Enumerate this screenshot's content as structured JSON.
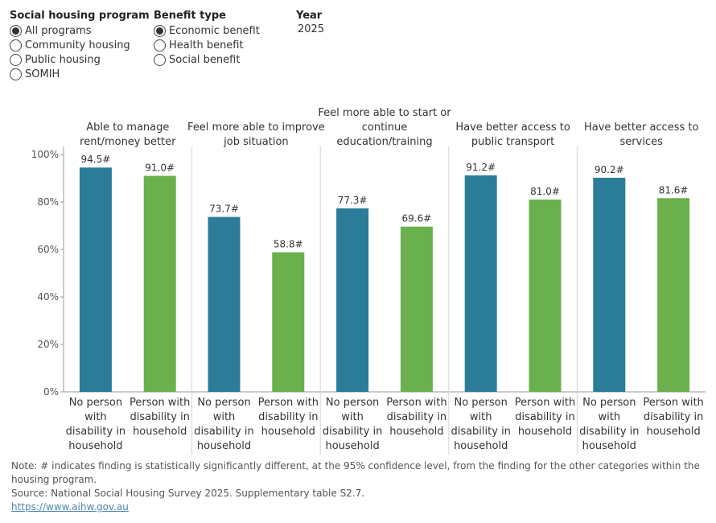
{
  "filters": {
    "program": {
      "title": "Social housing program",
      "options": [
        "All programs",
        "Community housing",
        "Public housing",
        "SOMIH"
      ],
      "selected": 0
    },
    "benefit": {
      "title": "Benefit type",
      "options": [
        "Economic benefit",
        "Health benefit",
        "Social benefit"
      ],
      "selected": 0
    },
    "year": {
      "title": "Year",
      "value": "2025"
    }
  },
  "colors": {
    "no_disability": "#2b7c99",
    "with_disability": "#6ab04c"
  },
  "chart_data": {
    "type": "bar",
    "ylim": [
      0,
      100
    ],
    "yticks": [
      "0%",
      "20%",
      "40%",
      "60%",
      "80%",
      "100%"
    ],
    "grid": false,
    "categories": [
      "No person with disability in household",
      "Person with disability in household"
    ],
    "panels": [
      {
        "title": [
          "Able to manage",
          "rent/money better"
        ],
        "values": [
          94.5,
          91.0
        ],
        "labels": [
          "94.5#",
          "91.0#"
        ]
      },
      {
        "title": [
          "Feel more able to improve",
          "job situation"
        ],
        "values": [
          73.7,
          58.8
        ],
        "labels": [
          "73.7#",
          "58.8#"
        ]
      },
      {
        "title": [
          "Feel more able to start or",
          "continue",
          "education/training"
        ],
        "values": [
          77.3,
          69.6
        ],
        "labels": [
          "77.3#",
          "69.6#"
        ]
      },
      {
        "title": [
          "Have better access to",
          "public transport"
        ],
        "values": [
          91.2,
          81.0
        ],
        "labels": [
          "91.2#",
          "81.0#"
        ]
      },
      {
        "title": [
          "Have better access to",
          "services"
        ],
        "values": [
          90.2,
          81.6
        ],
        "labels": [
          "90.2#",
          "81.6#"
        ]
      }
    ],
    "xlabels": [
      [
        "No person",
        "with",
        "disability in",
        "household"
      ],
      [
        "Person with",
        "disability in",
        "household"
      ]
    ]
  },
  "footer": {
    "note": "Note: # indicates finding is statistically significantly different, at the 95% confidence level, from the finding for the other categories within the housing program.",
    "source": "Source: National Social Housing Survey 2025. Supplementary table S2.7.",
    "link": "https://www.aihw.gov.au"
  }
}
